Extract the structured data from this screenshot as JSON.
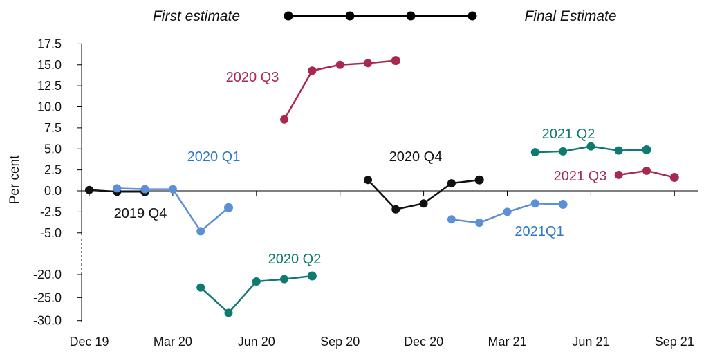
{
  "chart_data": {
    "type": "line",
    "ylabel": "Per cent",
    "legend": {
      "first_label": "First estimate",
      "final_label": "Final Estimate",
      "position": "top"
    },
    "x_ticks": [
      "Dec 19",
      "Mar 20",
      "Jun 20",
      "Sep 20",
      "Dec 20",
      "Mar 21",
      "Jun 21",
      "Sep 21"
    ],
    "y_ticks_upper": [
      "17.5",
      "15.0",
      "12.5",
      "10.0",
      "7.5",
      "5.0",
      "2.5",
      "0.0",
      "-2.5",
      "-5.0"
    ],
    "y_ticks_lower": [
      "-20.0",
      "-25.0",
      "-30.0"
    ],
    "broken_axis": true,
    "grid": false,
    "series": [
      {
        "name": "2019 Q4",
        "color": "#111111",
        "x": [
          "Dec 19",
          "Jan 20",
          "Feb 20"
        ],
        "values": [
          0.1,
          -0.1,
          -0.1
        ]
      },
      {
        "name": "2020 Q1",
        "color": "#5b8fd6",
        "x": [
          "Jan 20",
          "Feb 20",
          "Mar 20",
          "Apr 20",
          "May 20"
        ],
        "values": [
          0.3,
          0.2,
          0.2,
          -4.8,
          -2.0
        ]
      },
      {
        "name": "2020 Q2",
        "color": "#0e7a70",
        "x": [
          "Apr 20",
          "May 20",
          "Jun 20",
          "Jul 20",
          "Aug 20"
        ],
        "values": [
          -22.8,
          -28.3,
          -21.5,
          -21.0,
          -20.3
        ]
      },
      {
        "name": "2020 Q3",
        "color": "#a8294e",
        "x": [
          "Jul 20",
          "Aug 20",
          "Sep 20",
          "Oct 20",
          "Nov 20"
        ],
        "values": [
          8.5,
          14.3,
          15.0,
          15.2,
          15.5
        ]
      },
      {
        "name": "2020 Q4",
        "color": "#111111",
        "x": [
          "Oct 20",
          "Nov 20",
          "Dec 20",
          "Jan 21",
          "Feb 21"
        ],
        "values": [
          1.3,
          -2.2,
          -1.5,
          0.9,
          1.3
        ]
      },
      {
        "name": "2021Q1",
        "color": "#5b8fd6",
        "x": [
          "Jan 21",
          "Feb 21",
          "Mar 21",
          "Apr 21",
          "May 21"
        ],
        "values": [
          -3.4,
          -3.8,
          -2.5,
          -1.5,
          -1.6
        ]
      },
      {
        "name": "2021 Q2",
        "color": "#0e7a70",
        "x": [
          "Apr 21",
          "May 21",
          "Jun 21",
          "Jul 21",
          "Aug 21"
        ],
        "values": [
          4.6,
          4.7,
          5.3,
          4.8,
          4.9
        ]
      },
      {
        "name": "2021 Q3",
        "color": "#a8294e",
        "x": [
          "Jul 21",
          "Aug 21",
          "Sep 21"
        ],
        "values": [
          1.9,
          2.4,
          1.6
        ]
      }
    ]
  }
}
